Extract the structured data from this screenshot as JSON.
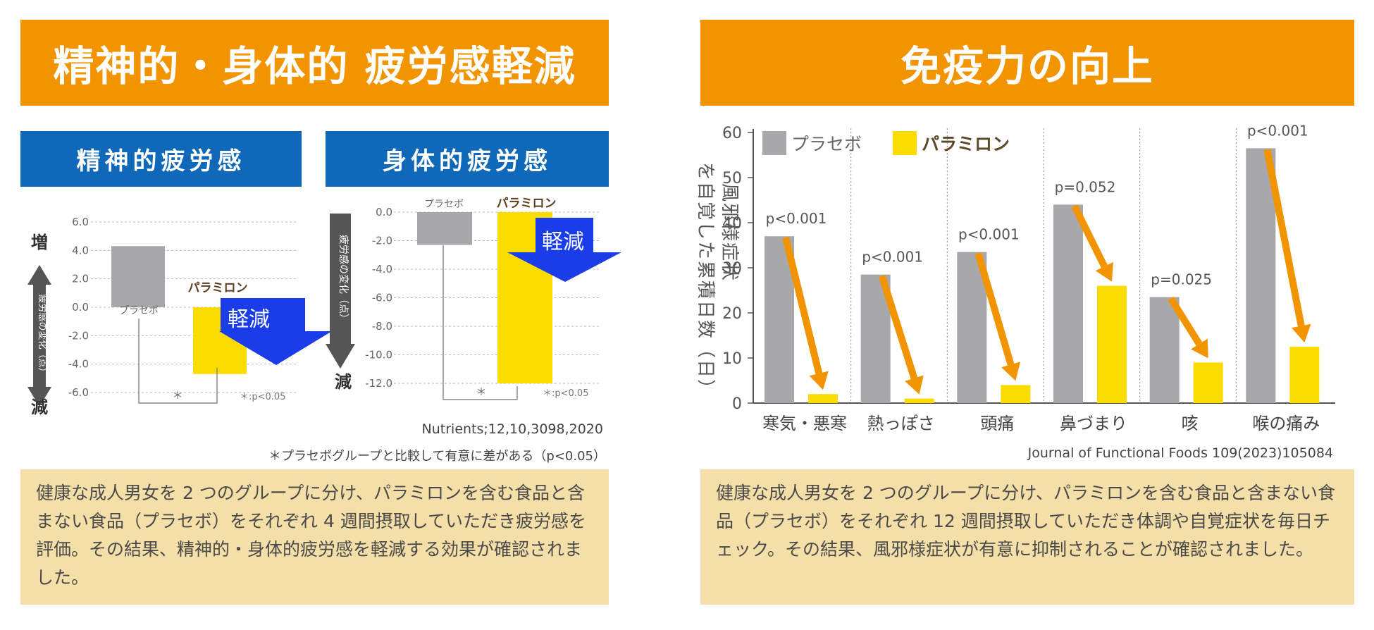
{
  "left": {
    "title": "精神的・身体的 疲労感軽減",
    "mental_header": "精神的疲労感",
    "physical_header": "身体的疲労感",
    "reference": "Nutrients;12,10,3098,2020",
    "note": "＊プラセボグループと比較して有意に差がある（p<0.05）",
    "description": "健康な成人男女を 2 つのグループに分け、パラミロンを含む食品と含まない食品（プラセボ）をそれぞれ 4 週間摂取していただき疲労感を評価。その結果、精神的・身体的疲労感を軽減する効果が確認されました。"
  },
  "right": {
    "title": "免疫力の向上",
    "reference": "Journal of Functional Foods 109(2023)105084",
    "description": "健康な成人男女を 2 つのグループに分け、パラミロンを含む食品と含まない食品（プラセボ）をそれぞれ 12 週間摂取していただき体調や自覚症状を毎日チェック。その結果、風邪様症状が有意に抑制されることが確認されました。"
  },
  "colors": {
    "orange": "#f29400",
    "blue": "#1068b8",
    "gray": "#a8a8aa",
    "yellow": "#fadc00",
    "beige": "#f5dfa8",
    "arrow_blue": "#1a3de8"
  },
  "chart_data": [
    {
      "type": "bar",
      "title": "精神的疲労感",
      "ylabel": "疲労感の変化（点）",
      "axis_top": "増",
      "axis_bottom": "減",
      "ylim": [
        -6,
        6
      ],
      "yticks": [
        "6.0",
        "4.0",
        "2.0",
        "0.0",
        "-2.0",
        "-4.0",
        "-6.0"
      ],
      "categories": [
        "プラセボ",
        "パラミロン"
      ],
      "values": [
        4.3,
        -4.7
      ],
      "annotation": "軽減",
      "sig_marker": "＊",
      "sig_note": "＊:p<0.05"
    },
    {
      "type": "bar",
      "title": "身体的疲労感",
      "ylabel": "疲労感の変化（点）",
      "axis_bottom": "減",
      "ylim": [
        -12,
        0
      ],
      "yticks": [
        "0.0",
        "-2.0",
        "-4.0",
        "-6.0",
        "-8.0",
        "-10.0",
        "-12.0"
      ],
      "categories": [
        "プラセボ",
        "パラミロン"
      ],
      "values": [
        -2.3,
        -12.0
      ],
      "annotation": "軽減",
      "sig_marker": "＊",
      "sig_note": "＊:p<0.05"
    },
    {
      "type": "bar",
      "title": "免疫力の向上",
      "ylabel": "風邪様症状を自覚した累積日数（日）",
      "ylim": [
        0,
        60
      ],
      "yticks": [
        "0",
        "10",
        "20",
        "30",
        "40",
        "50",
        "60"
      ],
      "categories": [
        "寒気・悪寒",
        "熱っぽさ",
        "頭痛",
        "鼻づまり",
        "咳",
        "喉の痛み"
      ],
      "series": [
        {
          "name": "プラセボ",
          "values": [
            37,
            28.5,
            33.5,
            44,
            23.5,
            56.5
          ]
        },
        {
          "name": "パラミロン",
          "values": [
            2,
            1,
            4,
            26,
            9,
            12.5
          ]
        }
      ],
      "pvalues": [
        "p<0.001",
        "p<0.001",
        "p<0.001",
        "p=0.052",
        "p=0.025",
        "p<0.001"
      ]
    }
  ]
}
